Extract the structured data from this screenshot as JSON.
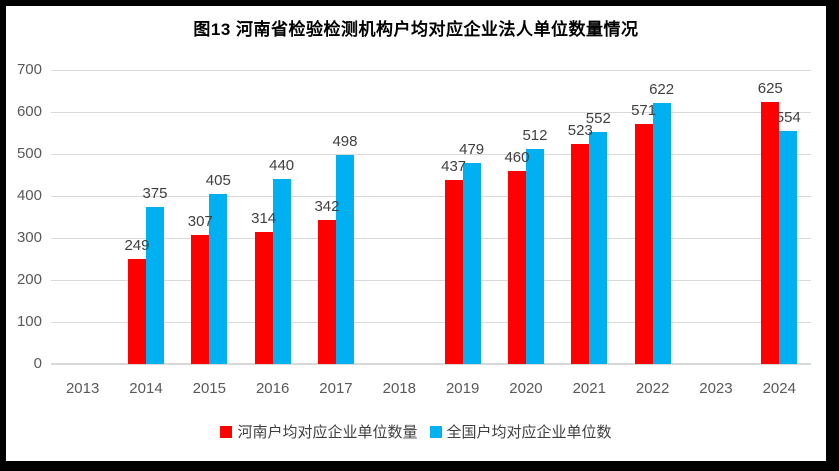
{
  "colors": {
    "henan_series": "#FF0000",
    "national_series": "#00B0F0",
    "gridline": "#D9D9D9",
    "axis_line": "#D9D9D9",
    "data_label_text": "#404040",
    "axis_text": "#595959",
    "title_text": "#000000",
    "frame_border": "#000000",
    "background": "#FFFFFF"
  },
  "chart_data": {
    "type": "bar",
    "title": "图13 河南省检验检测机构户均对应企业法人单位数量情况",
    "categories": [
      "2013",
      "2014",
      "2015",
      "2016",
      "2017",
      "2018",
      "2019",
      "2020",
      "2021",
      "2022",
      "2023",
      "2024"
    ],
    "series": [
      {
        "key": "henan",
        "name": "河南户均对应企业单位数量",
        "color": "#FF0000",
        "values": [
          null,
          249,
          307,
          314,
          342,
          null,
          437,
          460,
          523,
          571,
          null,
          625
        ]
      },
      {
        "key": "national",
        "name": "全国户均对应企业单位数",
        "color": "#00B0F0",
        "values": [
          null,
          375,
          405,
          440,
          498,
          null,
          479,
          512,
          552,
          622,
          null,
          554
        ]
      }
    ],
    "xlabel": "",
    "ylabel": "",
    "ylim": [
      0,
      700
    ],
    "ytick_interval": 100,
    "yticks": [
      0,
      100,
      200,
      300,
      400,
      500,
      600,
      700
    ],
    "grid": true,
    "legend_position": "bottom",
    "data_labels": "outside-end"
  }
}
